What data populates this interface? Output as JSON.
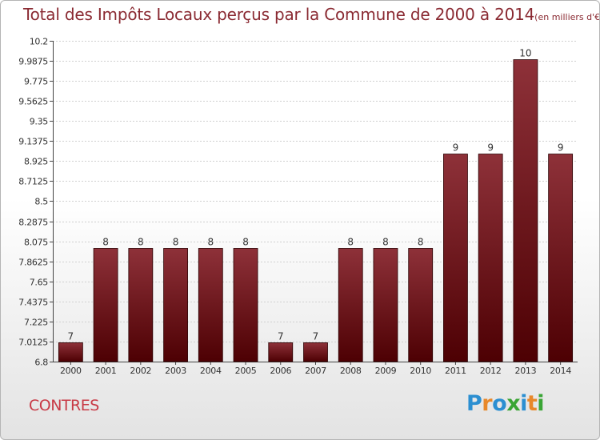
{
  "header": {
    "title": "Total des Impôts Locaux perçus par la Commune de 2000 à 2014",
    "unit": "(en milliers d'€)"
  },
  "footer": {
    "commune": "CONTRES",
    "logo": "Proxiti"
  },
  "colors": {
    "bar_light": "#8e3139",
    "bar_dark": "#4d0003",
    "title": "#8a2a32",
    "commune": "#c83a46",
    "grid": "#cfcfcf"
  },
  "chart_data": {
    "type": "bar",
    "categories": [
      "2000",
      "2001",
      "2002",
      "2003",
      "2004",
      "2005",
      "2006",
      "2007",
      "2008",
      "2009",
      "2010",
      "2011",
      "2012",
      "2013",
      "2014"
    ],
    "values": [
      7,
      8,
      8,
      8,
      8,
      8,
      7,
      7,
      8,
      8,
      8,
      9,
      9,
      10,
      9
    ],
    "data_labels": [
      "7",
      "8",
      "8",
      "8",
      "8",
      "8",
      "7",
      "7",
      "8",
      "8",
      "8",
      "9",
      "9",
      "10",
      "9"
    ],
    "bar_tops": [
      7.0,
      8.0,
      8.0,
      8.0,
      8.0,
      8.0,
      7.0,
      7.0,
      8.0,
      8.0,
      8.0,
      9.0,
      9.0,
      10.0,
      9.0
    ],
    "yticks": [
      "6.8",
      "7.0125",
      "7.225",
      "7.4375",
      "7.65",
      "7.8625",
      "8.075",
      "8.2875",
      "8.5",
      "8.7125",
      "8.925",
      "9.1375",
      "9.35",
      "9.5625",
      "9.775",
      "9.9875",
      "10.2"
    ],
    "ylim": [
      6.8,
      10.2
    ],
    "grid": true,
    "title": "Total des Impôts Locaux perçus par la Commune de 2000 à 2014",
    "xlabel": "",
    "ylabel": ""
  }
}
